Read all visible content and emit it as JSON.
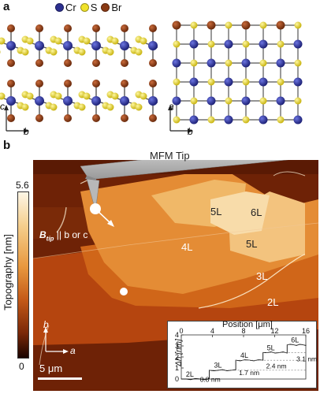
{
  "panel_a": {
    "label": "a",
    "legend": [
      {
        "symbol": "Cr",
        "color": "#2b2f8f"
      },
      {
        "symbol": "S",
        "color": "#f0e22a"
      },
      {
        "symbol": "Br",
        "color": "#8a3a14"
      }
    ],
    "axes_left": {
      "vertical": "c",
      "horizontal": "b"
    },
    "axes_right": {
      "vertical": "a",
      "horizontal": "b"
    }
  },
  "panel_b": {
    "label": "b",
    "tip_label": "MFM Tip",
    "b_tip_label": "B",
    "b_tip_sub": "tip",
    "b_tip_rest": " || b or c",
    "colorbar": {
      "title": "Topography [nm]",
      "max": "5.6",
      "min": "0"
    },
    "layer_labels": [
      "5L",
      "6L",
      "4L",
      "5L",
      "3L",
      "2L"
    ],
    "axes": {
      "vertical": "b",
      "horizontal": "a"
    },
    "scalebar": "5 μm",
    "inset": {
      "xlabel": "Position [μm]",
      "x_ticks": [
        "0",
        "4",
        "8",
        "12",
        "16"
      ],
      "y_ticks": [
        "0",
        "1",
        "2",
        "3",
        "4"
      ],
      "ylabel": "Δh [nm]",
      "step_labels": [
        "2L",
        "3L",
        "4L",
        "5L",
        "6L"
      ],
      "annotations": [
        "0.8 nm",
        "1.7 nm",
        "2.4 nm",
        "3.1 nm"
      ]
    }
  }
}
